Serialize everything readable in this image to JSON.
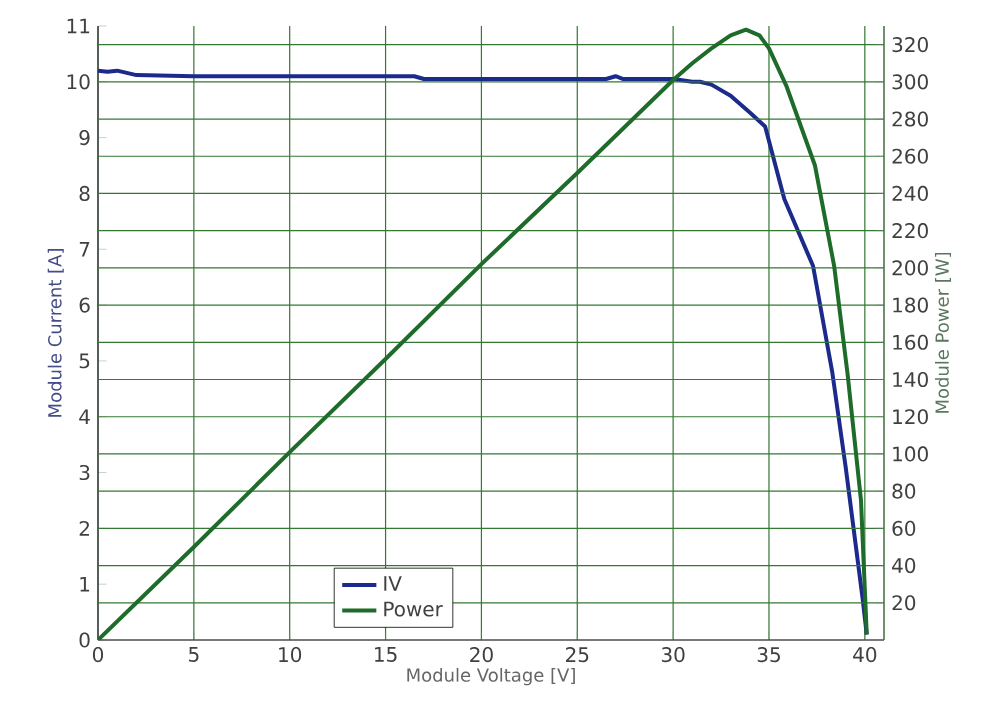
{
  "chart_data": {
    "type": "line",
    "xlabel": "Module Voltage [V]",
    "ylabel": "Module Current [A]",
    "y2label": "Module Power [W]",
    "xlim": [
      0,
      41
    ],
    "xticks": [
      0,
      5,
      10,
      15,
      20,
      25,
      30,
      35,
      40
    ],
    "ylim": [
      0,
      11
    ],
    "yticks": [
      0,
      1,
      2,
      3,
      4,
      5,
      6,
      7,
      8,
      9,
      10,
      11
    ],
    "y2lim": [
      0,
      330
    ],
    "y2ticks": [
      20,
      40,
      60,
      80,
      100,
      120,
      140,
      160,
      180,
      200,
      220,
      240,
      260,
      280,
      300,
      320
    ],
    "grid": true,
    "legend": "bottom",
    "marker": "none",
    "line_style": "solid",
    "series": [
      {
        "name": "IV",
        "color": "#1c2a8c",
        "x": [
          0,
          0.5,
          1,
          2,
          5,
          10,
          16.5,
          17,
          26.5,
          27,
          27.4,
          30,
          31,
          31.4,
          32,
          33,
          34,
          34.8,
          35.8,
          37.3,
          38.3,
          39,
          39.9,
          40.1
        ],
        "values": [
          10.2,
          10.18,
          10.2,
          10.12,
          10.1,
          10.1,
          10.1,
          10.05,
          10.05,
          10.1,
          10.05,
          10.05,
          10.0,
          10.0,
          9.95,
          9.75,
          9.45,
          9.2,
          7.9,
          6.7,
          4.8,
          3.1,
          0.7,
          0.1
        ]
      },
      {
        "name": "Power",
        "color": "#1f6b2a",
        "axis": "y2",
        "x": [
          0,
          5,
          10,
          15,
          20,
          25,
          30,
          31,
          32,
          33,
          33.8,
          34.5,
          35,
          35.9,
          37.4,
          38.4,
          39.1,
          39.8,
          40.1
        ],
        "values": [
          0,
          50,
          101,
          151,
          202,
          251,
          301,
          310,
          318,
          325,
          328,
          325,
          318,
          298,
          255,
          201,
          143,
          75,
          3
        ]
      }
    ]
  }
}
